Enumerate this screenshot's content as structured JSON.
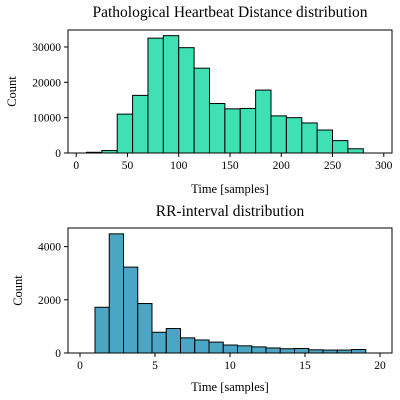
{
  "chart_data": [
    {
      "type": "bar",
      "title": "Pathological Heartbeat Distance distribution",
      "xlabel": "Time [samples]",
      "ylabel": "Count",
      "xlim": [
        -8,
        308
      ],
      "ylim": [
        0,
        34800
      ],
      "xticks": [
        0,
        50,
        100,
        150,
        200,
        250,
        300
      ],
      "yticks": [
        0,
        10000,
        20000,
        30000
      ],
      "color": "#40e0b5",
      "bin_edges": [
        10,
        25,
        40,
        55,
        70,
        85,
        100,
        115,
        130,
        145,
        160,
        175,
        190,
        205,
        220,
        235,
        250,
        265,
        280,
        295
      ],
      "values": [
        200,
        700,
        11000,
        16300,
        32500,
        33200,
        29800,
        24000,
        14000,
        12500,
        12600,
        17800,
        10500,
        10000,
        8500,
        6500,
        3500,
        1200,
        0
      ],
      "grid": false,
      "legend": "none"
    },
    {
      "type": "bar",
      "title": "RR-interval distribution",
      "xlabel": "Time [samples]",
      "ylabel": "Count",
      "xlim": [
        -0.8,
        20.8
      ],
      "ylim": [
        0,
        4700
      ],
      "xticks": [
        0,
        5,
        10,
        15,
        20
      ],
      "yticks": [
        0,
        2000,
        4000
      ],
      "color": "#4aa6c4",
      "bin_edges": [
        1.0,
        1.95,
        2.9,
        3.85,
        4.8,
        5.75,
        6.7,
        7.65,
        8.6,
        9.55,
        10.5,
        11.45,
        12.4,
        13.35,
        14.3,
        15.25,
        16.2,
        17.15,
        18.1,
        19.05,
        20.0
      ],
      "values": [
        1720,
        4480,
        3230,
        1860,
        780,
        920,
        570,
        490,
        410,
        300,
        270,
        230,
        190,
        160,
        170,
        120,
        110,
        110,
        130,
        0
      ],
      "grid": false,
      "legend": "none"
    }
  ]
}
